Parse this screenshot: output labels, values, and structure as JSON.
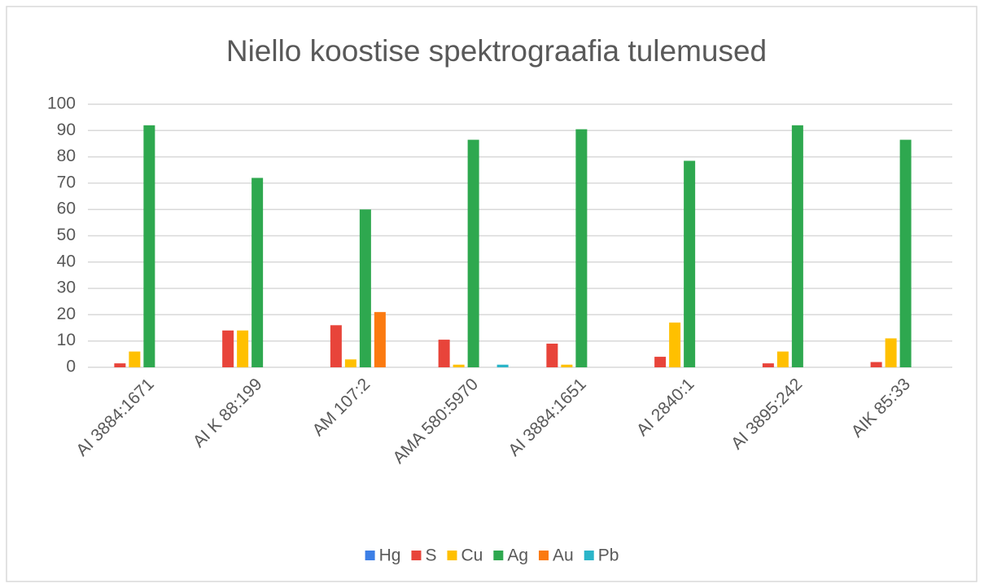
{
  "chart_data": {
    "type": "bar",
    "title": "Niello koostise spektrograafia tulemused",
    "categories": [
      "AI 3884:1671",
      "AI K 88:199",
      "AM 107:2",
      "AMA 580:5970",
      "AI 3884:1651",
      "AI 2840:1",
      "AI 3895:242",
      "AIK 85:33"
    ],
    "series": [
      {
        "name": "Hg",
        "color": "#3c7fe6",
        "values": [
          0,
          0,
          0,
          0,
          0,
          0,
          0,
          0
        ]
      },
      {
        "name": "S",
        "color": "#e8443a",
        "values": [
          1.5,
          14,
          16,
          10.5,
          9,
          4,
          1.5,
          2
        ]
      },
      {
        "name": "Cu",
        "color": "#ffc000",
        "values": [
          6,
          14,
          3,
          1,
          1,
          17,
          6,
          11
        ]
      },
      {
        "name": "Ag",
        "color": "#2ea84f",
        "values": [
          92,
          72,
          60,
          86.5,
          90.5,
          78.5,
          92,
          86.5
        ]
      },
      {
        "name": "Au",
        "color": "#fb7a10",
        "values": [
          0,
          0,
          21,
          0,
          0,
          0,
          0,
          0
        ]
      },
      {
        "name": "Pb",
        "color": "#2bb5c9",
        "values": [
          0,
          0,
          0,
          1,
          0,
          0,
          0,
          0
        ]
      }
    ],
    "ylim": [
      0,
      100
    ],
    "yticks": [
      0,
      10,
      20,
      30,
      40,
      50,
      60,
      70,
      80,
      90,
      100
    ],
    "grid": true,
    "legend": "bottom"
  }
}
